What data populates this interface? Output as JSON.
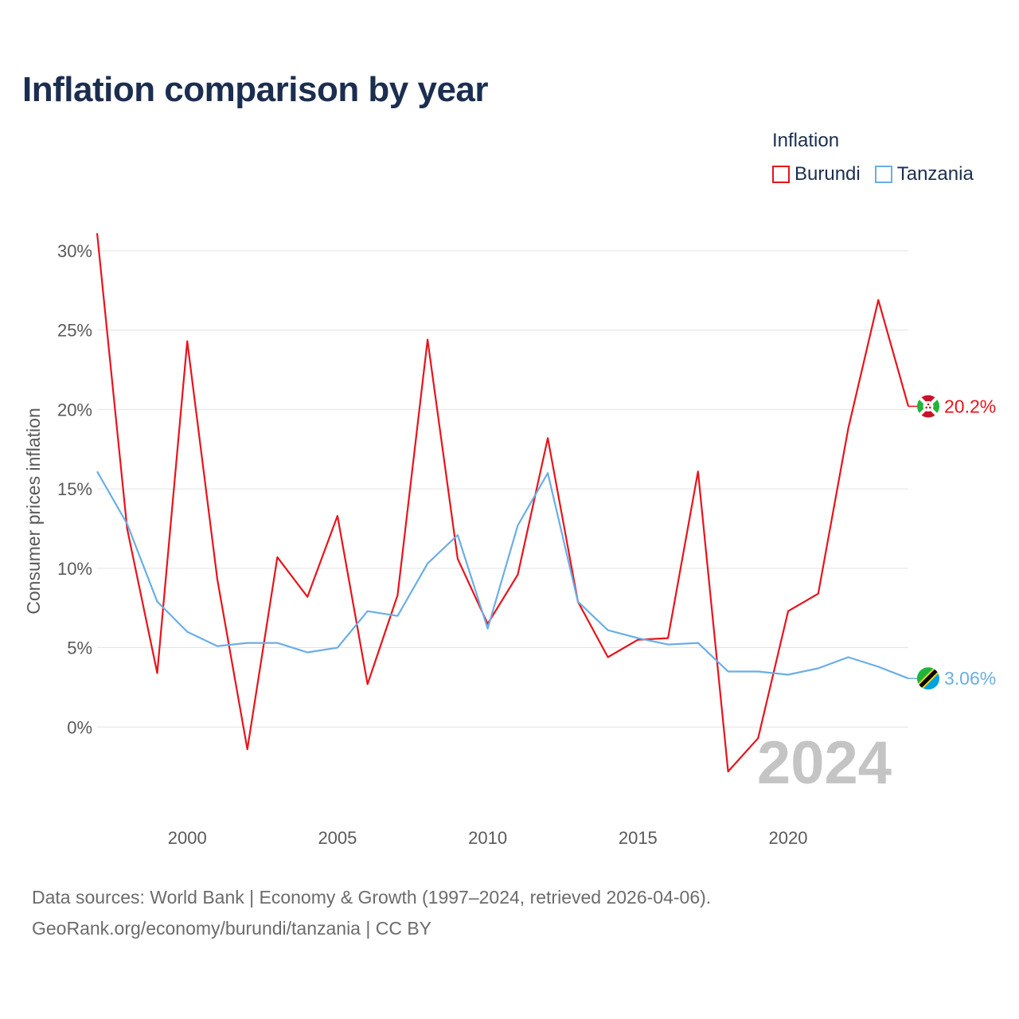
{
  "title": "Inflation comparison by year",
  "legend": {
    "title": "Inflation",
    "items": [
      {
        "label": "Burundi",
        "color": "#e8131b"
      },
      {
        "label": "Tanzania",
        "color": "#6aaee6"
      }
    ]
  },
  "footer": {
    "line1": "Data sources: World Bank | Economy & Growth (1997–2024, retrieved 2026-04-06).",
    "line2": "GeoRank.org/economy/burundi/tanzania | CC BY"
  },
  "chart_data": {
    "type": "line",
    "title": "Inflation comparison by year",
    "xlabel": "",
    "ylabel": "Consumer prices inflation",
    "year_watermark": "2024",
    "x": [
      1997,
      1998,
      1999,
      2000,
      2001,
      2002,
      2003,
      2004,
      2005,
      2006,
      2007,
      2008,
      2009,
      2010,
      2011,
      2012,
      2013,
      2014,
      2015,
      2016,
      2017,
      2018,
      2019,
      2020,
      2021,
      2022,
      2023,
      2024
    ],
    "xlim": [
      1997,
      2024
    ],
    "ylim": [
      -5,
      31
    ],
    "x_ticks": [
      {
        "value": 2000,
        "label": "2000"
      },
      {
        "value": 2005,
        "label": "2005"
      },
      {
        "value": 2010,
        "label": "2010"
      },
      {
        "value": 2015,
        "label": "2015"
      },
      {
        "value": 2020,
        "label": "2020"
      }
    ],
    "y_ticks": [
      {
        "value": 0,
        "label": "0%"
      },
      {
        "value": 5,
        "label": "5%"
      },
      {
        "value": 10,
        "label": "10%"
      },
      {
        "value": 15,
        "label": "15%"
      },
      {
        "value": 20,
        "label": "20%"
      },
      {
        "value": 25,
        "label": "25%"
      },
      {
        "value": 30,
        "label": "30%"
      }
    ],
    "series": [
      {
        "name": "Burundi",
        "color": "#e8131b",
        "end_label": "20.2%",
        "flag": "burundi-flag",
        "values": [
          31.1,
          12.5,
          3.4,
          24.3,
          9.3,
          -1.4,
          10.7,
          8.2,
          13.3,
          2.7,
          8.3,
          24.4,
          10.6,
          6.5,
          9.6,
          18.2,
          7.9,
          4.4,
          5.5,
          5.6,
          16.1,
          -2.8,
          -0.7,
          7.3,
          8.4,
          18.8,
          26.9,
          20.2
        ]
      },
      {
        "name": "Tanzania",
        "color": "#6aaee6",
        "end_label": "3.06%",
        "flag": "tanzania-flag",
        "values": [
          16.1,
          12.8,
          7.9,
          6.0,
          5.1,
          5.3,
          5.3,
          4.7,
          5.0,
          7.3,
          7.0,
          10.3,
          12.1,
          6.2,
          12.7,
          16.0,
          7.9,
          6.1,
          5.6,
          5.2,
          5.3,
          3.5,
          3.5,
          3.3,
          3.7,
          4.4,
          3.8,
          3.06
        ]
      }
    ]
  }
}
